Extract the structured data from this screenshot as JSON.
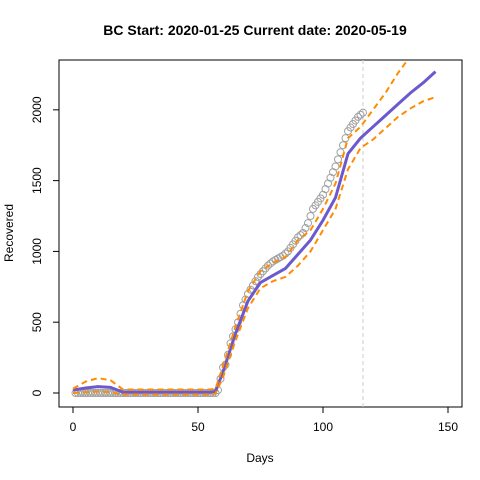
{
  "chart_data": {
    "type": "line",
    "title": "BC Start:  2020-01-25   Current date:  2020-05-19",
    "x_label": "Days",
    "y_label": "Recovered",
    "xlim": [
      -5.6,
      155.6
    ],
    "ylim": [
      -99,
      2352
    ],
    "xticks": [
      0,
      50,
      100,
      150
    ],
    "yticks": [
      0,
      500,
      1000,
      1500,
      2000
    ],
    "vline": 116,
    "vline_color": "#cccccc",
    "series": [
      {
        "style": "points",
        "color": "#a0a0a0",
        "x": [
          1,
          2,
          3,
          4,
          5,
          6,
          7,
          8,
          9,
          10,
          11,
          12,
          13,
          14,
          15,
          16,
          17,
          18,
          19,
          20,
          21,
          22,
          23,
          24,
          25,
          26,
          27,
          28,
          29,
          30,
          31,
          32,
          33,
          34,
          35,
          36,
          37,
          38,
          39,
          40,
          41,
          42,
          43,
          44,
          45,
          46,
          47,
          48,
          49,
          50,
          51,
          52,
          53,
          54,
          55,
          56,
          57,
          58,
          59,
          60,
          61,
          62,
          63,
          64,
          65,
          66,
          67,
          68,
          69,
          70,
          71,
          72,
          73,
          74,
          75,
          76,
          77,
          78,
          79,
          80,
          81,
          82,
          83,
          84,
          85,
          86,
          87,
          88,
          89,
          90,
          91,
          92,
          93,
          94,
          95,
          96,
          97,
          98,
          99,
          100,
          101,
          102,
          103,
          104,
          105,
          106,
          107,
          108,
          109,
          110,
          111,
          112,
          113,
          114,
          115,
          116
        ],
        "values": [
          0,
          0,
          0,
          0,
          0,
          0,
          0,
          0,
          0,
          0,
          0,
          0,
          0,
          0,
          0,
          0,
          0,
          0,
          0,
          0,
          0,
          0,
          0,
          0,
          0,
          0,
          0,
          0,
          0,
          0,
          0,
          0,
          0,
          0,
          0,
          0,
          0,
          0,
          0,
          0,
          0,
          0,
          0,
          0,
          0,
          0,
          0,
          0,
          0,
          0,
          0,
          0,
          0,
          0,
          0,
          0,
          0,
          20,
          100,
          180,
          200,
          270,
          350,
          400,
          450,
          500,
          560,
          620,
          660,
          700,
          730,
          760,
          790,
          820,
          840,
          860,
          880,
          900,
          915,
          930,
          940,
          950,
          960,
          970,
          985,
          1000,
          1025,
          1050,
          1075,
          1100,
          1115,
          1130,
          1165,
          1200,
          1250,
          1300,
          1325,
          1350,
          1375,
          1400,
          1440,
          1480,
          1520,
          1560,
          1600,
          1650,
          1700,
          1750,
          1800,
          1850,
          1875,
          1900,
          1925,
          1950,
          1965,
          1980
        ]
      },
      {
        "style": "solid",
        "color": "#6a5acd",
        "x": [
          0,
          5,
          10,
          15,
          20,
          25,
          30,
          35,
          40,
          45,
          50,
          55,
          57,
          60,
          65,
          70,
          75,
          80,
          85,
          90,
          95,
          100,
          105,
          110,
          115,
          120,
          125,
          130,
          135,
          140,
          145
        ],
        "values": [
          20,
          35,
          45,
          40,
          5,
          5,
          5,
          5,
          5,
          5,
          5,
          5,
          10,
          150,
          420,
          650,
          780,
          830,
          880,
          980,
          1080,
          1220,
          1380,
          1690,
          1800,
          1880,
          1960,
          2040,
          2120,
          2190,
          2270
        ]
      },
      {
        "style": "dashed",
        "color": "#ff8c00",
        "x": [
          0,
          5,
          10,
          15,
          20,
          25,
          30,
          35,
          40,
          45,
          50,
          55,
          57,
          60,
          65,
          70,
          75,
          80,
          85,
          90,
          95,
          100,
          105,
          110,
          115,
          120,
          125,
          130,
          135
        ],
        "values": [
          30,
          80,
          105,
          90,
          25,
          25,
          25,
          25,
          25,
          25,
          25,
          25,
          30,
          190,
          470,
          720,
          860,
          920,
          960,
          1080,
          1150,
          1300,
          1480,
          1800,
          1880,
          2000,
          2120,
          2260,
          2380
        ]
      },
      {
        "style": "dashed",
        "color": "#ff8c00",
        "x": [
          0,
          5,
          10,
          15,
          20,
          25,
          30,
          35,
          40,
          45,
          50,
          55,
          57,
          60,
          65,
          70,
          75,
          80,
          85,
          90,
          95,
          100,
          105,
          110,
          115,
          120,
          125,
          130,
          135,
          140,
          145
        ],
        "values": [
          0,
          5,
          10,
          5,
          -10,
          -10,
          -10,
          -10,
          -10,
          -10,
          -10,
          -10,
          -5,
          110,
          370,
          600,
          740,
          790,
          820,
          900,
          1000,
          1150,
          1300,
          1580,
          1730,
          1790,
          1870,
          1950,
          2010,
          2060,
          2090
        ]
      }
    ]
  }
}
